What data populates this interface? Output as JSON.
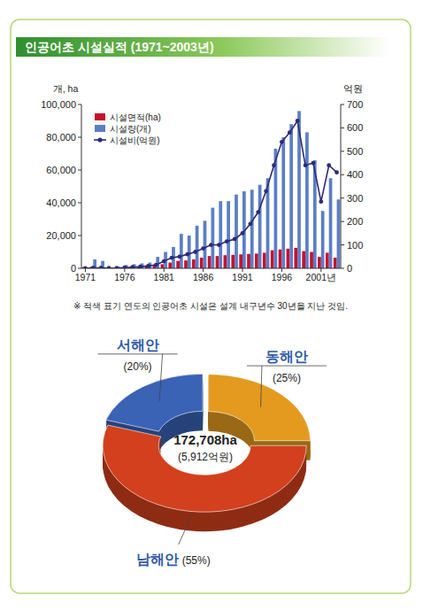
{
  "chart_data": [
    {
      "type": "bar",
      "title": "인공어초 시설실적 (1971~2003년)",
      "y_label": "개, ha",
      "y2_label": "억원",
      "annotations": [
        "※ 적색 표기 연도의 인공어초 시설은 설계 내구년수 30년을 지난 것임."
      ],
      "categories": [
        "1971",
        null,
        null,
        null,
        null,
        "1976",
        null,
        null,
        null,
        null,
        "1981",
        null,
        null,
        null,
        null,
        "1986",
        null,
        null,
        null,
        null,
        "1991",
        null,
        null,
        null,
        null,
        "1996",
        null,
        null,
        null,
        null,
        "2001년",
        null,
        null
      ],
      "series": [
        {
          "name": "시설면적(ha)",
          "type": "bar",
          "color": "#c8102e",
          "values": [
            800,
            900,
            600,
            300,
            400,
            600,
            800,
            1000,
            1200,
            1800,
            2500,
            3500,
            4500,
            4800,
            5500,
            6500,
            7500,
            7500,
            8000,
            8200,
            8500,
            8800,
            9000,
            9500,
            11000,
            11500,
            12000,
            12500,
            10500,
            10000,
            7000,
            9500,
            6500
          ]
        },
        {
          "name": "시설량(개)",
          "type": "bar",
          "color": "#5b7fc4",
          "values": [
            0,
            5500,
            4500,
            0,
            1000,
            2000,
            2500,
            3000,
            3500,
            7000,
            10000,
            13000,
            21000,
            20000,
            26000,
            29000,
            37000,
            41000,
            41000,
            45000,
            47000,
            48000,
            51000,
            55000,
            73000,
            80000,
            88000,
            96000,
            83000,
            66000,
            35000,
            55000,
            42000
          ]
        },
        {
          "name": "시설비(억원)",
          "type": "line",
          "axis": "y2",
          "color": "#2e2a7a",
          "marker": "circle",
          "line_style": "solid",
          "values": [
            0,
            2,
            2,
            1,
            1,
            3,
            5,
            7,
            10,
            15,
            30,
            45,
            50,
            60,
            70,
            85,
            100,
            100,
            115,
            125,
            150,
            190,
            240,
            330,
            440,
            540,
            580,
            630,
            440,
            450,
            285,
            440,
            410
          ]
        }
      ],
      "ylim": [
        0,
        100000
      ],
      "yticks": [
        0,
        {
          "value": 20000,
          "label": "20,000"
        },
        {
          "value": 40000,
          "label": "40,000"
        },
        {
          "value": 60000,
          "label": "60,000"
        },
        {
          "value": 80000,
          "label": "80,000"
        },
        {
          "value": 100000,
          "label": "100,000"
        }
      ],
      "y2lim": [
        0,
        700
      ],
      "y2ticks": [
        0,
        100,
        200,
        300,
        400,
        500,
        600,
        700
      ],
      "grid": false,
      "legend": "upper left"
    },
    {
      "type": "pie",
      "categories": [
        "서해안",
        "동해안",
        "남해안"
      ],
      "values": [
        20,
        25,
        55
      ],
      "value_labels": [
        "(20%)",
        "(25%)",
        "(55%)"
      ],
      "colors": [
        "#3a62b5",
        "#e39a1f",
        "#d2401e"
      ],
      "data_labels": true,
      "annotations": [
        "172,708ha",
        "(5,912억원)"
      ]
    }
  ]
}
